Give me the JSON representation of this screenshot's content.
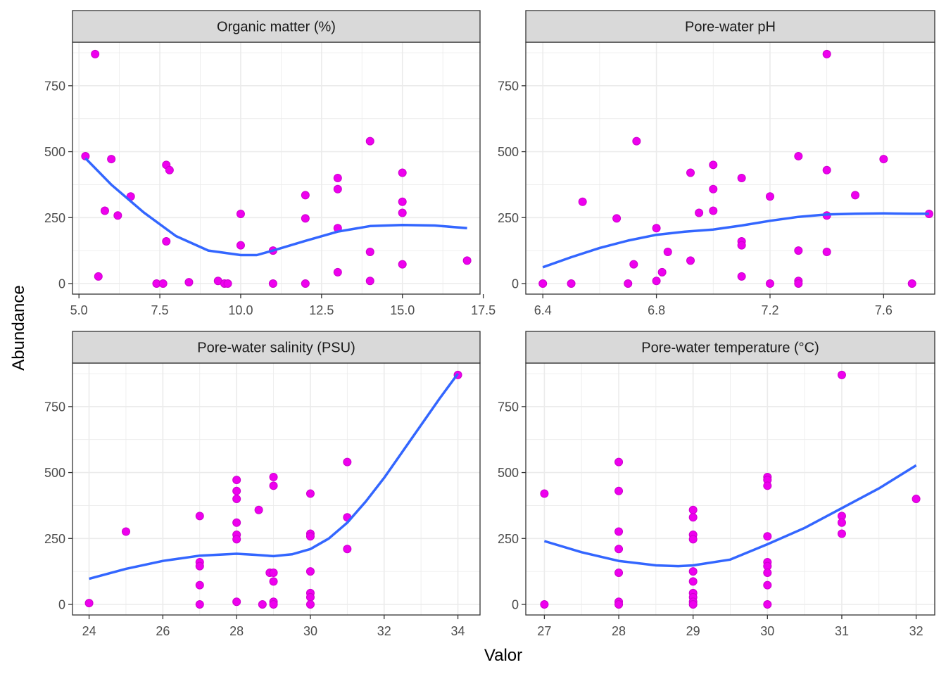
{
  "chart_data": {
    "type": "scatter",
    "xlabel": "Valor",
    "ylabel": "Abundance",
    "colors": {
      "points": "#ee00ee",
      "point_edge": "#cc00cc",
      "smooth": "#3366ff",
      "strip_fill": "#d9d9d9",
      "grid": "#ebebeb",
      "panel_border": "#333333"
    },
    "y_ticks": [
      0,
      250,
      500,
      750
    ],
    "y_tick_labels": [
      "0",
      "250",
      "500",
      "750"
    ],
    "ylim": [
      -40,
      915
    ],
    "panels": [
      {
        "title": "Organic matter (%)",
        "xlim": [
          4.8,
          17.4
        ],
        "x_ticks": [
          5,
          7.5,
          10,
          12.5,
          15,
          17.5
        ],
        "x_tick_labels": [
          "5.0",
          "7.5",
          "10.0",
          "12.5",
          "15.0",
          "17.5"
        ],
        "points": [
          [
            5.2,
            483
          ],
          [
            5.5,
            870
          ],
          [
            5.6,
            27
          ],
          [
            5.8,
            276
          ],
          [
            6.0,
            472
          ],
          [
            6.2,
            258
          ],
          [
            6.6,
            330
          ],
          [
            7.4,
            0
          ],
          [
            7.6,
            0
          ],
          [
            7.7,
            160
          ],
          [
            7.7,
            450
          ],
          [
            7.8,
            430
          ],
          [
            8.4,
            5
          ],
          [
            9.3,
            10
          ],
          [
            9.5,
            0
          ],
          [
            9.6,
            0
          ],
          [
            10,
            264
          ],
          [
            10,
            145
          ],
          [
            11,
            125
          ],
          [
            11,
            0
          ],
          [
            12,
            335
          ],
          [
            12,
            247
          ],
          [
            12,
            0
          ],
          [
            13,
            400
          ],
          [
            13,
            358
          ],
          [
            13,
            210
          ],
          [
            13,
            43
          ],
          [
            14,
            540
          ],
          [
            14,
            120
          ],
          [
            14,
            10
          ],
          [
            15,
            420
          ],
          [
            15,
            310
          ],
          [
            15,
            268
          ],
          [
            15,
            73
          ],
          [
            17,
            87
          ]
        ],
        "smooth": [
          [
            5.2,
            475
          ],
          [
            6,
            375
          ],
          [
            7,
            270
          ],
          [
            8,
            180
          ],
          [
            9,
            125
          ],
          [
            10,
            108
          ],
          [
            10.5,
            108
          ],
          [
            11,
            125
          ],
          [
            12,
            162
          ],
          [
            13,
            197
          ],
          [
            14,
            218
          ],
          [
            15,
            222
          ],
          [
            16,
            220
          ],
          [
            17,
            210
          ]
        ]
      },
      {
        "title": "Pore-water pH",
        "xlim": [
          6.34,
          7.78
        ],
        "x_ticks": [
          6.4,
          6.8,
          7.2,
          7.6
        ],
        "x_tick_labels": [
          "6.4",
          "6.8",
          "7.2",
          "7.6"
        ],
        "points": [
          [
            6.4,
            0
          ],
          [
            6.5,
            0
          ],
          [
            6.54,
            310
          ],
          [
            6.66,
            247
          ],
          [
            6.7,
            0
          ],
          [
            6.72,
            73
          ],
          [
            6.73,
            540
          ],
          [
            6.8,
            210
          ],
          [
            6.8,
            10
          ],
          [
            6.82,
            43
          ],
          [
            6.84,
            120
          ],
          [
            6.92,
            420
          ],
          [
            6.92,
            87
          ],
          [
            6.95,
            268
          ],
          [
            7.0,
            450
          ],
          [
            7.0,
            358
          ],
          [
            7.0,
            276
          ],
          [
            7.1,
            400
          ],
          [
            7.1,
            160
          ],
          [
            7.1,
            145
          ],
          [
            7.1,
            27
          ],
          [
            7.2,
            330
          ],
          [
            7.2,
            0
          ],
          [
            7.3,
            483
          ],
          [
            7.3,
            125
          ],
          [
            7.3,
            10
          ],
          [
            7.3,
            0
          ],
          [
            7.4,
            870
          ],
          [
            7.4,
            430
          ],
          [
            7.4,
            258
          ],
          [
            7.4,
            120
          ],
          [
            7.5,
            335
          ],
          [
            7.6,
            472
          ],
          [
            7.7,
            0
          ],
          [
            7.76,
            264
          ]
        ],
        "smooth": [
          [
            6.4,
            62
          ],
          [
            6.5,
            100
          ],
          [
            6.6,
            135
          ],
          [
            6.7,
            163
          ],
          [
            6.8,
            185
          ],
          [
            6.9,
            197
          ],
          [
            7.0,
            205
          ],
          [
            7.1,
            220
          ],
          [
            7.2,
            238
          ],
          [
            7.3,
            253
          ],
          [
            7.4,
            262
          ],
          [
            7.5,
            265
          ],
          [
            7.6,
            266
          ],
          [
            7.7,
            265
          ],
          [
            7.76,
            265
          ]
        ]
      },
      {
        "title": "Pore-water salinity (PSU)",
        "xlim": [
          23.55,
          34.6
        ],
        "x_ticks": [
          24,
          26,
          28,
          30,
          32,
          34
        ],
        "x_tick_labels": [
          "24",
          "26",
          "28",
          "30",
          "32",
          "34"
        ],
        "points": [
          [
            24,
            5
          ],
          [
            25,
            276
          ],
          [
            27,
            335
          ],
          [
            27,
            160
          ],
          [
            27,
            145
          ],
          [
            27,
            73
          ],
          [
            27,
            0
          ],
          [
            28,
            472
          ],
          [
            28,
            430
          ],
          [
            28,
            400
          ],
          [
            28,
            310
          ],
          [
            28,
            264
          ],
          [
            28,
            247
          ],
          [
            28,
            10
          ],
          [
            28.6,
            358
          ],
          [
            28.7,
            0
          ],
          [
            28.9,
            120
          ],
          [
            29,
            483
          ],
          [
            29,
            450
          ],
          [
            29,
            120
          ],
          [
            29,
            87
          ],
          [
            29,
            10
          ],
          [
            29,
            0
          ],
          [
            30,
            420
          ],
          [
            30,
            268
          ],
          [
            30,
            258
          ],
          [
            30,
            125
          ],
          [
            30,
            43
          ],
          [
            30,
            27
          ],
          [
            30,
            0
          ],
          [
            31,
            540
          ],
          [
            31,
            330
          ],
          [
            31,
            210
          ],
          [
            34,
            870
          ]
        ],
        "smooth": [
          [
            24,
            97
          ],
          [
            25,
            135
          ],
          [
            26,
            165
          ],
          [
            27,
            185
          ],
          [
            28,
            192
          ],
          [
            28.5,
            188
          ],
          [
            29,
            183
          ],
          [
            29.5,
            190
          ],
          [
            30,
            210
          ],
          [
            30.5,
            250
          ],
          [
            31,
            310
          ],
          [
            31.5,
            390
          ],
          [
            32,
            480
          ],
          [
            32.5,
            580
          ],
          [
            33,
            680
          ],
          [
            33.5,
            780
          ],
          [
            34,
            875
          ]
        ]
      },
      {
        "title": "Pore-water temperature (°C)",
        "xlim": [
          26.75,
          32.25
        ],
        "x_ticks": [
          27,
          28,
          29,
          30,
          31,
          32
        ],
        "x_tick_labels": [
          "27",
          "28",
          "29",
          "30",
          "31",
          "32"
        ],
        "points": [
          [
            27,
            420
          ],
          [
            27,
            0
          ],
          [
            28,
            540
          ],
          [
            28,
            430
          ],
          [
            28,
            276
          ],
          [
            28,
            210
          ],
          [
            28,
            120
          ],
          [
            28,
            10
          ],
          [
            28,
            0
          ],
          [
            29,
            358
          ],
          [
            29,
            330
          ],
          [
            29,
            264
          ],
          [
            29,
            247
          ],
          [
            29,
            125
          ],
          [
            29,
            87
          ],
          [
            29,
            43
          ],
          [
            29,
            27
          ],
          [
            29,
            10
          ],
          [
            29,
            0
          ],
          [
            30,
            483
          ],
          [
            30,
            472
          ],
          [
            30,
            450
          ],
          [
            30,
            258
          ],
          [
            30,
            160
          ],
          [
            30,
            145
          ],
          [
            30,
            120
          ],
          [
            30,
            73
          ],
          [
            30,
            0
          ],
          [
            31,
            870
          ],
          [
            31,
            335
          ],
          [
            31,
            310
          ],
          [
            31,
            268
          ],
          [
            32,
            400
          ]
        ],
        "smooth": [
          [
            27,
            240
          ],
          [
            27.5,
            198
          ],
          [
            28,
            165
          ],
          [
            28.5,
            148
          ],
          [
            28.8,
            145
          ],
          [
            29,
            148
          ],
          [
            29.5,
            170
          ],
          [
            30,
            228
          ],
          [
            30.5,
            290
          ],
          [
            31,
            365
          ],
          [
            31.5,
            440
          ],
          [
            32,
            527
          ]
        ]
      }
    ]
  }
}
